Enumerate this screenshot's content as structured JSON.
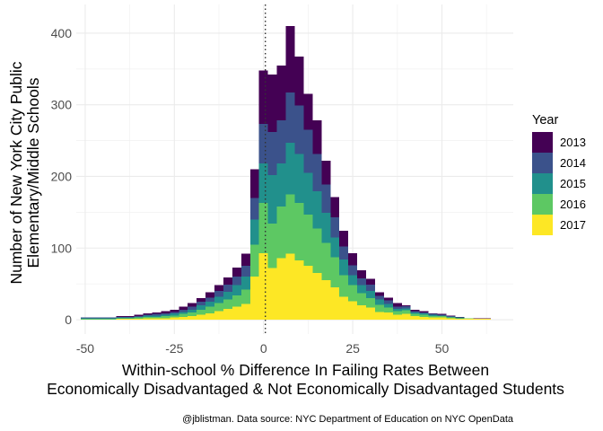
{
  "chart_data": {
    "type": "bar",
    "subtype": "stacked-histogram",
    "bin_width": 2.5,
    "x": [
      -50,
      -47.5,
      -45,
      -42.5,
      -40,
      -37.5,
      -35,
      -32.5,
      -30,
      -27.5,
      -25,
      -22.5,
      -20,
      -17.5,
      -15,
      -12.5,
      -10,
      -7.5,
      -5,
      -2.5,
      0,
      2.5,
      5,
      7.5,
      10,
      12.5,
      15,
      17.5,
      20,
      22.5,
      25,
      27.5,
      30,
      32.5,
      35,
      37.5,
      40,
      42.5,
      45,
      47.5,
      50,
      52.5,
      55,
      57.5,
      60,
      62.5,
      65
    ],
    "series": [
      {
        "name": "2017",
        "values": [
          0,
          0,
          0,
          0,
          1,
          1,
          1,
          2,
          2,
          2,
          3,
          4,
          5,
          7,
          9,
          12,
          15,
          18,
          22,
          60,
          93,
          72,
          86,
          92,
          83,
          75,
          65,
          55,
          45,
          32,
          26,
          20,
          17,
          11,
          10,
          7,
          8,
          5,
          4,
          3,
          3,
          2,
          1,
          1,
          1,
          1,
          0
        ]
      },
      {
        "name": "2016",
        "values": [
          1,
          1,
          1,
          1,
          1,
          1,
          2,
          2,
          2,
          3,
          3,
          4,
          5,
          7,
          9,
          11,
          13,
          16,
          20,
          45,
          70,
          62,
          72,
          83,
          80,
          72,
          62,
          52,
          42,
          30,
          22,
          17,
          13,
          10,
          7,
          5,
          5,
          3,
          3,
          2,
          2,
          1,
          1,
          1,
          0,
          0,
          0
        ]
      },
      {
        "name": "2015",
        "values": [
          1,
          1,
          1,
          1,
          1,
          1,
          1,
          2,
          2,
          2,
          3,
          3,
          4,
          6,
          7,
          9,
          11,
          14,
          18,
          35,
          55,
          68,
          60,
          72,
          68,
          58,
          52,
          42,
          28,
          22,
          14,
          11,
          10,
          7,
          5,
          3,
          3,
          2,
          2,
          2,
          1,
          1,
          1,
          0,
          0,
          0,
          0
        ]
      },
      {
        "name": "2014",
        "values": [
          1,
          1,
          1,
          1,
          1,
          1,
          1,
          1,
          2,
          2,
          2,
          3,
          4,
          5,
          6,
          8,
          10,
          12,
          15,
          30,
          55,
          60,
          60,
          70,
          68,
          60,
          52,
          40,
          28,
          18,
          14,
          10,
          9,
          5,
          5,
          3,
          3,
          2,
          1,
          1,
          1,
          1,
          0,
          0,
          0,
          0,
          0
        ]
      },
      {
        "name": "2013",
        "values": [
          0,
          0,
          0,
          0,
          1,
          1,
          2,
          2,
          2,
          3,
          3,
          4,
          5,
          5,
          7,
          8,
          10,
          13,
          17,
          40,
          75,
          80,
          77,
          93,
          68,
          50,
          47,
          33,
          28,
          22,
          17,
          11,
          8,
          5,
          4,
          5,
          1,
          2,
          2,
          1,
          1,
          1,
          1,
          0,
          1,
          1,
          0
        ]
      }
    ],
    "xlabel": "Within-school % Difference In Failing Rates Between\nEconomically Disadvantaged & Not Economically Disadvantaged Students",
    "ylabel": "Number of New York City Public\nElementary/Middle Schools",
    "xlim": [
      -52.5,
      70
    ],
    "ylim": [
      -20,
      440
    ],
    "xticks": [
      -50,
      -25,
      0,
      25,
      50
    ],
    "xtick_labels": [
      "-50",
      "-25",
      "0",
      "25",
      "50"
    ],
    "yticks": [
      0,
      100,
      200,
      300,
      400
    ],
    "ytick_labels": [
      "0",
      "100",
      "200",
      "300",
      "400"
    ],
    "grid": true,
    "vline": {
      "x": 0.5,
      "style": "dotted"
    },
    "legend": {
      "title": "Year",
      "placement": "right",
      "entries": [
        {
          "label": "2013",
          "color": "#440154"
        },
        {
          "label": "2014",
          "color": "#3b528b"
        },
        {
          "label": "2015",
          "color": "#21908c"
        },
        {
          "label": "2016",
          "color": "#5dc863"
        },
        {
          "label": "2017",
          "color": "#fde725"
        }
      ]
    },
    "caption": "@jblistman. Data source: NYC Department of Education on NYC OpenData"
  }
}
